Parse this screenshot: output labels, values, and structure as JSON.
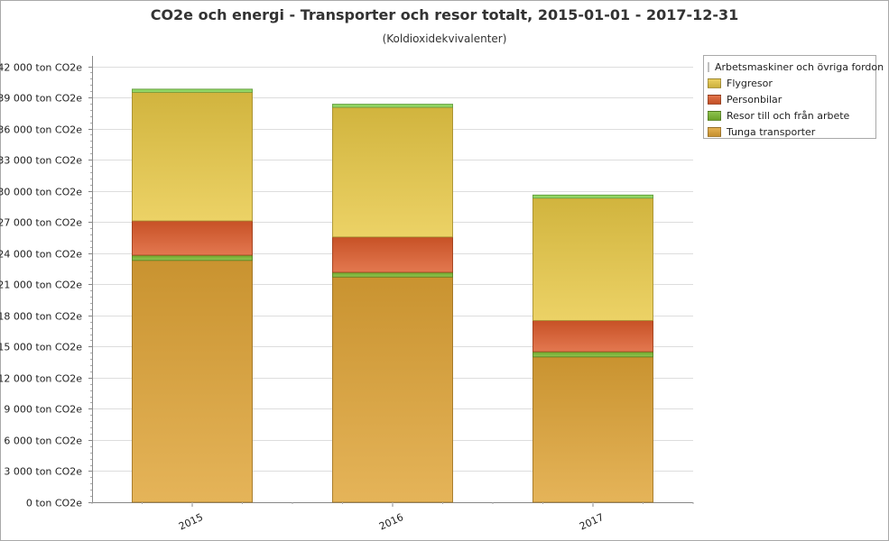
{
  "chart_data": {
    "type": "bar",
    "stacked": true,
    "title": "CO2e och energi - Transporter och resor totalt, 2015-01-01 - 2017-12-31",
    "subtitle": "(Koldioxidekvivalenter)",
    "xlabel": "",
    "ylabel": "",
    "categories": [
      "2015",
      "2016",
      "2017"
    ],
    "y_ticks": [
      "0 ton CO2e",
      "3 000 ton CO2e",
      "6 000 ton CO2e",
      "9 000 ton CO2e",
      "12 000 ton CO2e",
      "15 000 ton CO2e",
      "18 000 ton CO2e",
      "21 000 ton CO2e",
      "24 000 ton CO2e",
      "27 000 ton CO2e",
      "30 000 ton CO2e",
      "33 000 ton CO2e",
      "36 000 ton CO2e",
      "39 000 ton CO2e",
      "42 000 ton CO2e"
    ],
    "y_tick_values": [
      0,
      3000,
      6000,
      9000,
      12000,
      15000,
      18000,
      21000,
      24000,
      27000,
      30000,
      33000,
      36000,
      39000,
      42000
    ],
    "ylim": [
      0,
      43000
    ],
    "grid": true,
    "legend_position": "top-right",
    "series": [
      {
        "name": "Tunga transporter",
        "color": "#dfa335",
        "values": [
          23300,
          21700,
          14000
        ]
      },
      {
        "name": "Resor till och från arbete",
        "color": "#7ab82f",
        "values": [
          500,
          450,
          500
        ]
      },
      {
        "name": "Personbilar",
        "color": "#dd5a2a",
        "values": [
          3300,
          3400,
          3000
        ]
      },
      {
        "name": "Flygresor",
        "color": "#e8c845",
        "values": [
          12400,
          12500,
          11800
        ]
      },
      {
        "name": "Arbetsmaskiner och övriga fordon",
        "color": "#8ede5a",
        "values": [
          300,
          300,
          300
        ]
      }
    ],
    "legend_order": [
      4,
      3,
      2,
      1,
      0
    ]
  }
}
